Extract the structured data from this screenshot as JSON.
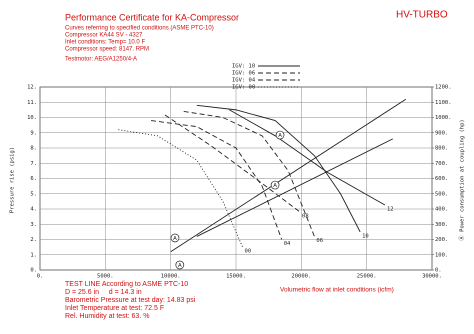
{
  "header": {
    "title": "Performance Certificate for KA-Compressor",
    "brand": "HV-TURBO",
    "conditions": [
      "Curves referring to specified conditions (ASME PTC-10)",
      "Compressor KA44 SV - 4327",
      "Inlet conditions: Temp= 10.0 F",
      "Compressor speed: 8147. RPM",
      "Testmotor: AEG/A1250/4-A"
    ]
  },
  "test_info": [
    "TEST LINE According to ASME PTC-10",
    "D = 25.6 in     d = 14.3 in",
    "Barometric Pressure at test day: 14.83 psi",
    "Inlet Temperature at test: 72.5 F",
    "Rel. Humidity at test: 63. %"
  ],
  "chart_data": {
    "type": "line",
    "xlabel": "Volumetric flow at inlet conditions (icfm)",
    "ylabel": "Pressure rise (psig)",
    "y2label": "Ⓐ Power consumption at coupling (hp)",
    "xlim": [
      0,
      30000
    ],
    "xticks": [
      {
        "value": 0,
        "label": "0."
      },
      {
        "value": 5000,
        "label": "5000."
      },
      {
        "value": 10000,
        "label": "10000."
      },
      {
        "value": 15000,
        "label": "15000."
      },
      {
        "value": 20000,
        "label": "20000."
      },
      {
        "value": 25000,
        "label": "25000."
      },
      {
        "value": 30000,
        "label": "30000."
      }
    ],
    "ylim": [
      0,
      12
    ],
    "yticks": [
      {
        "value": 0,
        "label": "0."
      },
      {
        "value": 1,
        "label": "1."
      },
      {
        "value": 2,
        "label": "2."
      },
      {
        "value": 3,
        "label": "3."
      },
      {
        "value": 4,
        "label": "4."
      },
      {
        "value": 5,
        "label": "5."
      },
      {
        "value": 6,
        "label": "6."
      },
      {
        "value": 7,
        "label": "7."
      },
      {
        "value": 8,
        "label": "8."
      },
      {
        "value": 9,
        "label": "9."
      },
      {
        "value": 10,
        "label": "10."
      },
      {
        "value": 11,
        "label": "11."
      },
      {
        "value": 12,
        "label": "12."
      }
    ],
    "y2lim": [
      0,
      1200
    ],
    "y2ticks": [
      {
        "value": 0,
        "label": "0."
      },
      {
        "value": 100,
        "label": "100."
      },
      {
        "value": 200,
        "label": "200."
      },
      {
        "value": 300,
        "label": "300."
      },
      {
        "value": 400,
        "label": "400."
      },
      {
        "value": 500,
        "label": "500."
      },
      {
        "value": 600,
        "label": "600."
      },
      {
        "value": 700,
        "label": "700."
      },
      {
        "value": 800,
        "label": "800."
      },
      {
        "value": 900,
        "label": "900."
      },
      {
        "value": 1000,
        "label": "1000."
      },
      {
        "value": 1100,
        "label": "1100."
      },
      {
        "value": 1200,
        "label": "1200."
      }
    ],
    "grid": true,
    "legend": "top",
    "series": [
      {
        "name": "IGV: 10",
        "color": "#222222",
        "dash": "solid",
        "end_label": "10",
        "x": [
          12000,
          15000,
          18000,
          21000,
          23000,
          24500
        ],
        "values": [
          10.8,
          10.5,
          9.8,
          7.5,
          5,
          2.5
        ]
      },
      {
        "name": "IGV: 06",
        "color": "#222222",
        "dash": "dash",
        "end_label": "06",
        "x": [
          11000,
          14000,
          17000,
          19000,
          21000
        ],
        "values": [
          10.4,
          10,
          8.8,
          6.5,
          2.2
        ]
      },
      {
        "name": "IGV: 04",
        "color": "#222222",
        "dash": "dash",
        "end_label": "04",
        "x": [
          8500,
          12000,
          15000,
          17000,
          18500
        ],
        "values": [
          9.8,
          9.4,
          8,
          5.5,
          2
        ]
      },
      {
        "name": "IGV: 00",
        "color": "#222222",
        "dash": "dot",
        "end_label": "00",
        "x": [
          6000,
          9000,
          12000,
          14000,
          15500
        ],
        "values": [
          9.2,
          8.8,
          7.2,
          4.5,
          1.5
        ]
      },
      {
        "axis": "y2",
        "color": "#222222",
        "dash": "solid",
        "end_label": "12",
        "x": [
          14500,
          18000,
          22000,
          26400
        ],
        "values": [
          1050,
          880,
          640,
          426
        ]
      },
      {
        "axis": "y2",
        "color": "#222222",
        "dash": "dash",
        "end_label": "08",
        "x": [
          9570,
          13000,
          16500,
          19900
        ],
        "values": [
          1016,
          820,
          600,
          380
        ]
      },
      {
        "color": "#222222",
        "dash": "solid",
        "x": [
          10000,
          28000
        ],
        "values": [
          1.2,
          11.2
        ]
      },
      {
        "color": "#222222",
        "dash": "solid",
        "x": [
          12000,
          27000
        ],
        "values": [
          2.2,
          8.6
        ]
      }
    ],
    "annotations": [
      {
        "text": "A",
        "x": 18370,
        "y": 8.85
      },
      {
        "text": "A",
        "x": 17990,
        "y": 5.57
      },
      {
        "text": "A",
        "x": 10330,
        "y": 2.1
      },
      {
        "text": "A",
        "x": 10700,
        "y": 0.33
      }
    ]
  }
}
